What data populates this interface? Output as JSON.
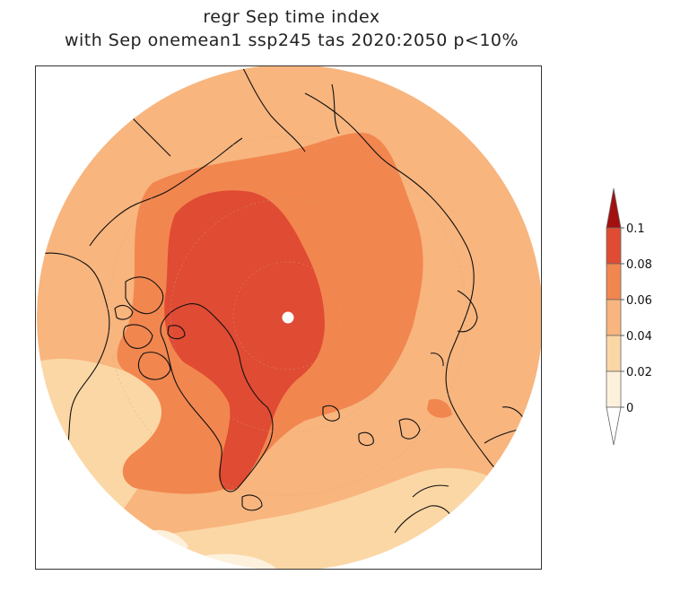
{
  "title": {
    "line1": "regr Sep time index",
    "line2": "with Sep onemean1 ssp245 tas 2020:2050 p<10%"
  },
  "colorbar": {
    "levels": [
      {
        "label": "0.1",
        "color": "#a40f10"
      },
      {
        "label": "0.08",
        "color": "#e04b33"
      },
      {
        "label": "0.06",
        "color": "#f2864f"
      },
      {
        "label": "0.04",
        "color": "#f8b57e"
      },
      {
        "label": "0.02",
        "color": "#fbd7a5"
      },
      {
        "label": "0",
        "color": "#fdf1dc"
      }
    ],
    "top_color": "#a40f10",
    "bottom_color": "#ffffff",
    "band_colors": [
      "#a40f10",
      "#e04b33",
      "#f2864f",
      "#f8b57e",
      "#fbd7a5",
      "#fdf1dc",
      "#ffffff"
    ]
  },
  "map": {
    "projection": "north polar stereographic",
    "marker_color": "#ffffff",
    "contour_colors": {
      "c004_006": "#f8b57e",
      "c006_008": "#f2864f",
      "c008_010": "#e04b33",
      "c002_004": "#fbd7a5",
      "c000_002": "#fdf1dc"
    }
  }
}
